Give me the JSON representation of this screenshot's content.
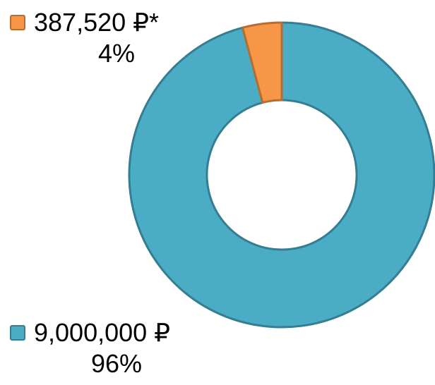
{
  "chart_data": {
    "type": "pie",
    "donut": true,
    "title": "",
    "legend": "none",
    "series": [
      {
        "values": [
          9000000,
          387520
        ],
        "labels": [
          "9,000,000 ₽",
          "387,520 ₽*"
        ],
        "percents": [
          "96%",
          "4%"
        ],
        "colors": [
          "#4bacc6",
          "#f79646"
        ],
        "border_colors": [
          "#357d91",
          "#b66d31"
        ]
      }
    ]
  },
  "labels": {
    "orange_value": "387,520 ₽*",
    "orange_percent": "4%",
    "blue_value": "9,000,000 ₽",
    "blue_percent": "96%"
  },
  "colors": {
    "blue": "#4bacc6",
    "orange": "#f79646",
    "blue_border": "#357d91",
    "orange_border": "#b66d31"
  }
}
